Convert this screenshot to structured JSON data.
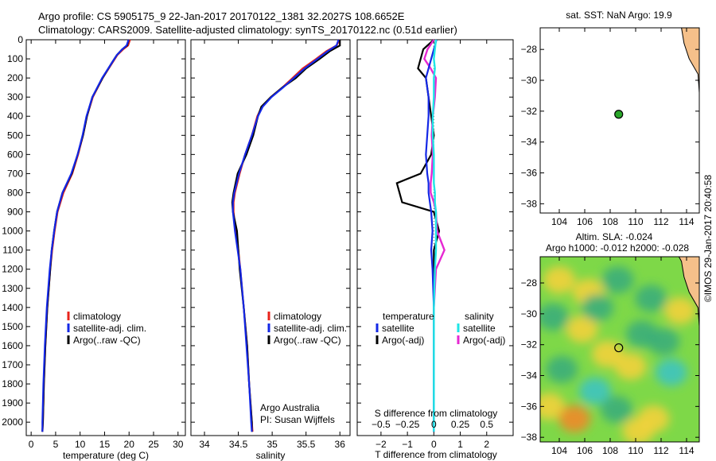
{
  "header": {
    "line1": "Argo profile: CS 5905175_9 22-Jan-2017 20170122_1381 32.2027S 108.6652E",
    "line2": "Climatology: CARS2009. Satellite-adjusted climatology: synTS_20170122.nc (0.51d earlier)"
  },
  "colors": {
    "climatology": "#e8241c",
    "satellite": "#1428e6",
    "argo": "#000000",
    "sal_satellite": "#1ee6e6",
    "sal_argo": "#e628d2",
    "land": "#f5c08a"
  },
  "chart_data": [
    {
      "type": "line",
      "name": "temperature-profile",
      "xlabel": "temperature (deg C)",
      "ylabel": "",
      "xlim": [
        -1,
        31.5
      ],
      "ylim": [
        2070,
        0
      ],
      "xticks": [
        0,
        5,
        10,
        15,
        20,
        25,
        30
      ],
      "yticks": [
        0,
        100,
        200,
        300,
        400,
        500,
        600,
        700,
        800,
        900,
        1000,
        1100,
        1200,
        1300,
        1400,
        1500,
        1600,
        1700,
        1800,
        1900,
        2000
      ],
      "legend": [
        "climatology",
        "satellite-adj. clim.",
        "Argo(..raw -QC)"
      ],
      "legend_pos": "lower-right",
      "depth": [
        0,
        30,
        50,
        80,
        120,
        200,
        300,
        400,
        500,
        600,
        700,
        800,
        900,
        1000,
        1100,
        1200,
        1400,
        1600,
        1800,
        2000,
        2050
      ],
      "series": [
        {
          "name": "climatology",
          "values": [
            20.2,
            19.8,
            18.8,
            17.6,
            16.6,
            14.6,
            12.6,
            11.4,
            10.6,
            9.6,
            8.4,
            6.6,
            5.4,
            4.8,
            4.3,
            3.9,
            3.3,
            2.9,
            2.6,
            2.4,
            2.3
          ]
        },
        {
          "name": "satellite-adj. clim.",
          "values": [
            19.9,
            19.5,
            18.6,
            17.5,
            16.5,
            14.5,
            12.5,
            11.3,
            10.5,
            9.5,
            8.2,
            6.4,
            5.3,
            4.7,
            4.2,
            3.8,
            3.2,
            2.8,
            2.5,
            2.3,
            2.3
          ]
        },
        {
          "name": "Argo(..raw -QC)",
          "values": [
            19.9,
            19.6,
            18.6,
            17.5,
            16.5,
            14.6,
            12.5,
            11.4,
            10.6,
            9.5,
            8.3,
            6.4,
            5.3,
            4.7,
            4.2,
            3.9,
            3.3,
            2.9,
            2.6,
            2.4,
            2.3
          ]
        }
      ]
    },
    {
      "type": "line",
      "name": "salinity-profile",
      "xlabel": "salinity",
      "ylabel": "",
      "xlim": [
        33.8,
        36.15
      ],
      "ylim": [
        2070,
        0
      ],
      "xticks": [
        34,
        34.5,
        35,
        35.5,
        36
      ],
      "legend": [
        "climatology",
        "satellite-adj. clim.",
        "Argo(..raw -QC)"
      ],
      "legend_pos": "lower-right",
      "annotation": [
        "Argo Australia",
        "PI: Susan Wijffels"
      ],
      "depth": [
        0,
        30,
        60,
        100,
        150,
        200,
        250,
        300,
        350,
        400,
        500,
        600,
        700,
        800,
        850,
        900,
        1000,
        1100,
        1200,
        1400,
        1600,
        1800,
        2000,
        2050
      ],
      "series": [
        {
          "name": "climatology",
          "values": [
            36.0,
            35.95,
            35.8,
            35.65,
            35.45,
            35.3,
            35.15,
            34.98,
            34.85,
            34.78,
            34.7,
            34.6,
            34.52,
            34.45,
            34.43,
            34.43,
            34.46,
            34.5,
            34.53,
            34.58,
            34.63,
            34.66,
            34.7,
            34.71
          ]
        },
        {
          "name": "satellite-adj. clim.",
          "values": [
            35.98,
            35.95,
            35.82,
            35.67,
            35.48,
            35.32,
            35.16,
            34.99,
            34.86,
            34.79,
            34.7,
            34.6,
            34.51,
            34.44,
            34.42,
            34.42,
            34.45,
            34.49,
            34.53,
            34.58,
            34.62,
            34.66,
            34.69,
            34.7
          ]
        },
        {
          "name": "Argo(..raw -QC)",
          "values": [
            36.0,
            36.0,
            35.85,
            35.7,
            35.5,
            35.35,
            35.15,
            34.98,
            34.84,
            34.79,
            34.72,
            34.62,
            34.49,
            34.43,
            34.41,
            34.42,
            34.48,
            34.5,
            34.52,
            34.58,
            34.63,
            34.66,
            34.7,
            34.7
          ]
        }
      ]
    },
    {
      "type": "line",
      "name": "difference-profile",
      "xlabel": "T difference from climatology",
      "xlabel2": "S difference from climatology",
      "xlim": [
        -2.9,
        3.0
      ],
      "ylim": [
        2070,
        0
      ],
      "xticks": [
        -2,
        -1,
        0,
        1,
        2
      ],
      "xticks_salinity": [
        -0.5,
        -0.25,
        0,
        0.25,
        0.5
      ],
      "legend_temperature": [
        "temperature",
        "satellite",
        "Argo(-adj)"
      ],
      "legend_salinity": [
        "salinity",
        "satellite",
        "Argo(-adj)"
      ],
      "depth": [
        0,
        50,
        100,
        150,
        200,
        300,
        400,
        500,
        600,
        700,
        750,
        800,
        850,
        900,
        1000,
        1100,
        1200,
        1400,
        1600,
        1800,
        2000,
        2050
      ],
      "series": [
        {
          "name": "temperature satellite",
          "values": [
            0.1,
            0.0,
            -0.1,
            -0.2,
            -0.3,
            -0.2,
            -0.2,
            -0.25,
            -0.3,
            -0.25,
            -0.2,
            -0.2,
            -0.15,
            -0.1,
            -0.05,
            -0.1,
            -0.05,
            0.0,
            0.0,
            0.0,
            0.0,
            0.0
          ]
        },
        {
          "name": "temperature Argo(-adj)",
          "values": [
            0.0,
            -0.4,
            -0.5,
            -0.6,
            -0.3,
            -0.2,
            -0.1,
            0.0,
            -0.1,
            -0.5,
            -1.4,
            -1.3,
            -1.2,
            0.0,
            0.2,
            0.0,
            0.0,
            0.0,
            0.0,
            0.0,
            0.0,
            0.0
          ]
        },
        {
          "name": "salinity satellite",
          "values": [
            0.02,
            0.01,
            0.0,
            0.01,
            0.0,
            0.0,
            -0.01,
            -0.01,
            0.0,
            0.0,
            0.0,
            0.01,
            0.01,
            0.02,
            0.02,
            0.02,
            0.01,
            0.0,
            0.0,
            0.0,
            0.0,
            0.0
          ]
        },
        {
          "name": "salinity Argo(-adj)",
          "values": [
            0.0,
            -0.06,
            -0.09,
            -0.03,
            0.02,
            0.01,
            -0.01,
            -0.02,
            -0.01,
            -0.02,
            -0.03,
            -0.03,
            0.0,
            0.02,
            0.03,
            0.1,
            0.02,
            0.0,
            0.0,
            0.0,
            0.0,
            0.0
          ]
        }
      ]
    },
    {
      "type": "scatter",
      "name": "sst-map",
      "title": "sat. SST: NaN Argo: 19.9",
      "xlim": [
        102.5,
        115
      ],
      "ylim": [
        -38.6,
        -26.6
      ],
      "xticks": [
        104,
        106,
        108,
        110,
        112,
        114
      ],
      "yticks": [
        -28,
        -30,
        -32,
        -34,
        -36,
        -38
      ],
      "points": [
        {
          "lon": 108.67,
          "lat": -32.2
        }
      ]
    },
    {
      "type": "heatmap",
      "name": "altimetry-map",
      "title": "Altim. SLA: -0.024",
      "subtitle": "Argo h1000: -0.012 h2000: -0.028",
      "xlim": [
        102.5,
        115
      ],
      "ylim": [
        -38.3,
        -26.3
      ],
      "xticks": [
        104,
        106,
        108,
        110,
        112,
        114
      ],
      "yticks": [
        -28,
        -30,
        -32,
        -34,
        -36,
        -38
      ],
      "points": [
        {
          "lon": 108.67,
          "lat": -32.2
        }
      ],
      "features": [
        {
          "lon": 104.0,
          "lat": -27.8,
          "v": 0.15
        },
        {
          "lon": 106.3,
          "lat": -28.6,
          "v": 0.12
        },
        {
          "lon": 108.6,
          "lat": -27.8,
          "v": -0.14
        },
        {
          "lon": 111.2,
          "lat": -29.0,
          "v": -0.16
        },
        {
          "lon": 103.5,
          "lat": -30.2,
          "v": -0.14
        },
        {
          "lon": 105.8,
          "lat": -31.0,
          "v": 0.14
        },
        {
          "lon": 110.5,
          "lat": -31.3,
          "v": -0.16
        },
        {
          "lon": 112.2,
          "lat": -31.8,
          "v": -0.18
        },
        {
          "lon": 107.8,
          "lat": -32.6,
          "v": 0.1
        },
        {
          "lon": 104.2,
          "lat": -33.6,
          "v": -0.12
        },
        {
          "lon": 109.6,
          "lat": -33.4,
          "v": 0.14
        },
        {
          "lon": 112.8,
          "lat": -33.8,
          "v": -0.2
        },
        {
          "lon": 106.8,
          "lat": -35.0,
          "v": -0.22
        },
        {
          "lon": 103.2,
          "lat": -36.0,
          "v": 0.16
        },
        {
          "lon": 105.2,
          "lat": -36.8,
          "v": 0.2
        },
        {
          "lon": 108.5,
          "lat": -36.2,
          "v": -0.14
        },
        {
          "lon": 111.4,
          "lat": -36.8,
          "v": 0.1
        },
        {
          "lon": 113.5,
          "lat": -29.8,
          "v": 0.12
        },
        {
          "lon": 110.2,
          "lat": -37.6,
          "v": 0.14
        },
        {
          "lon": 107.0,
          "lat": -29.6,
          "v": -0.08
        }
      ]
    }
  ],
  "credit": "©IMOS 29-Jan-2017 20:40:58"
}
